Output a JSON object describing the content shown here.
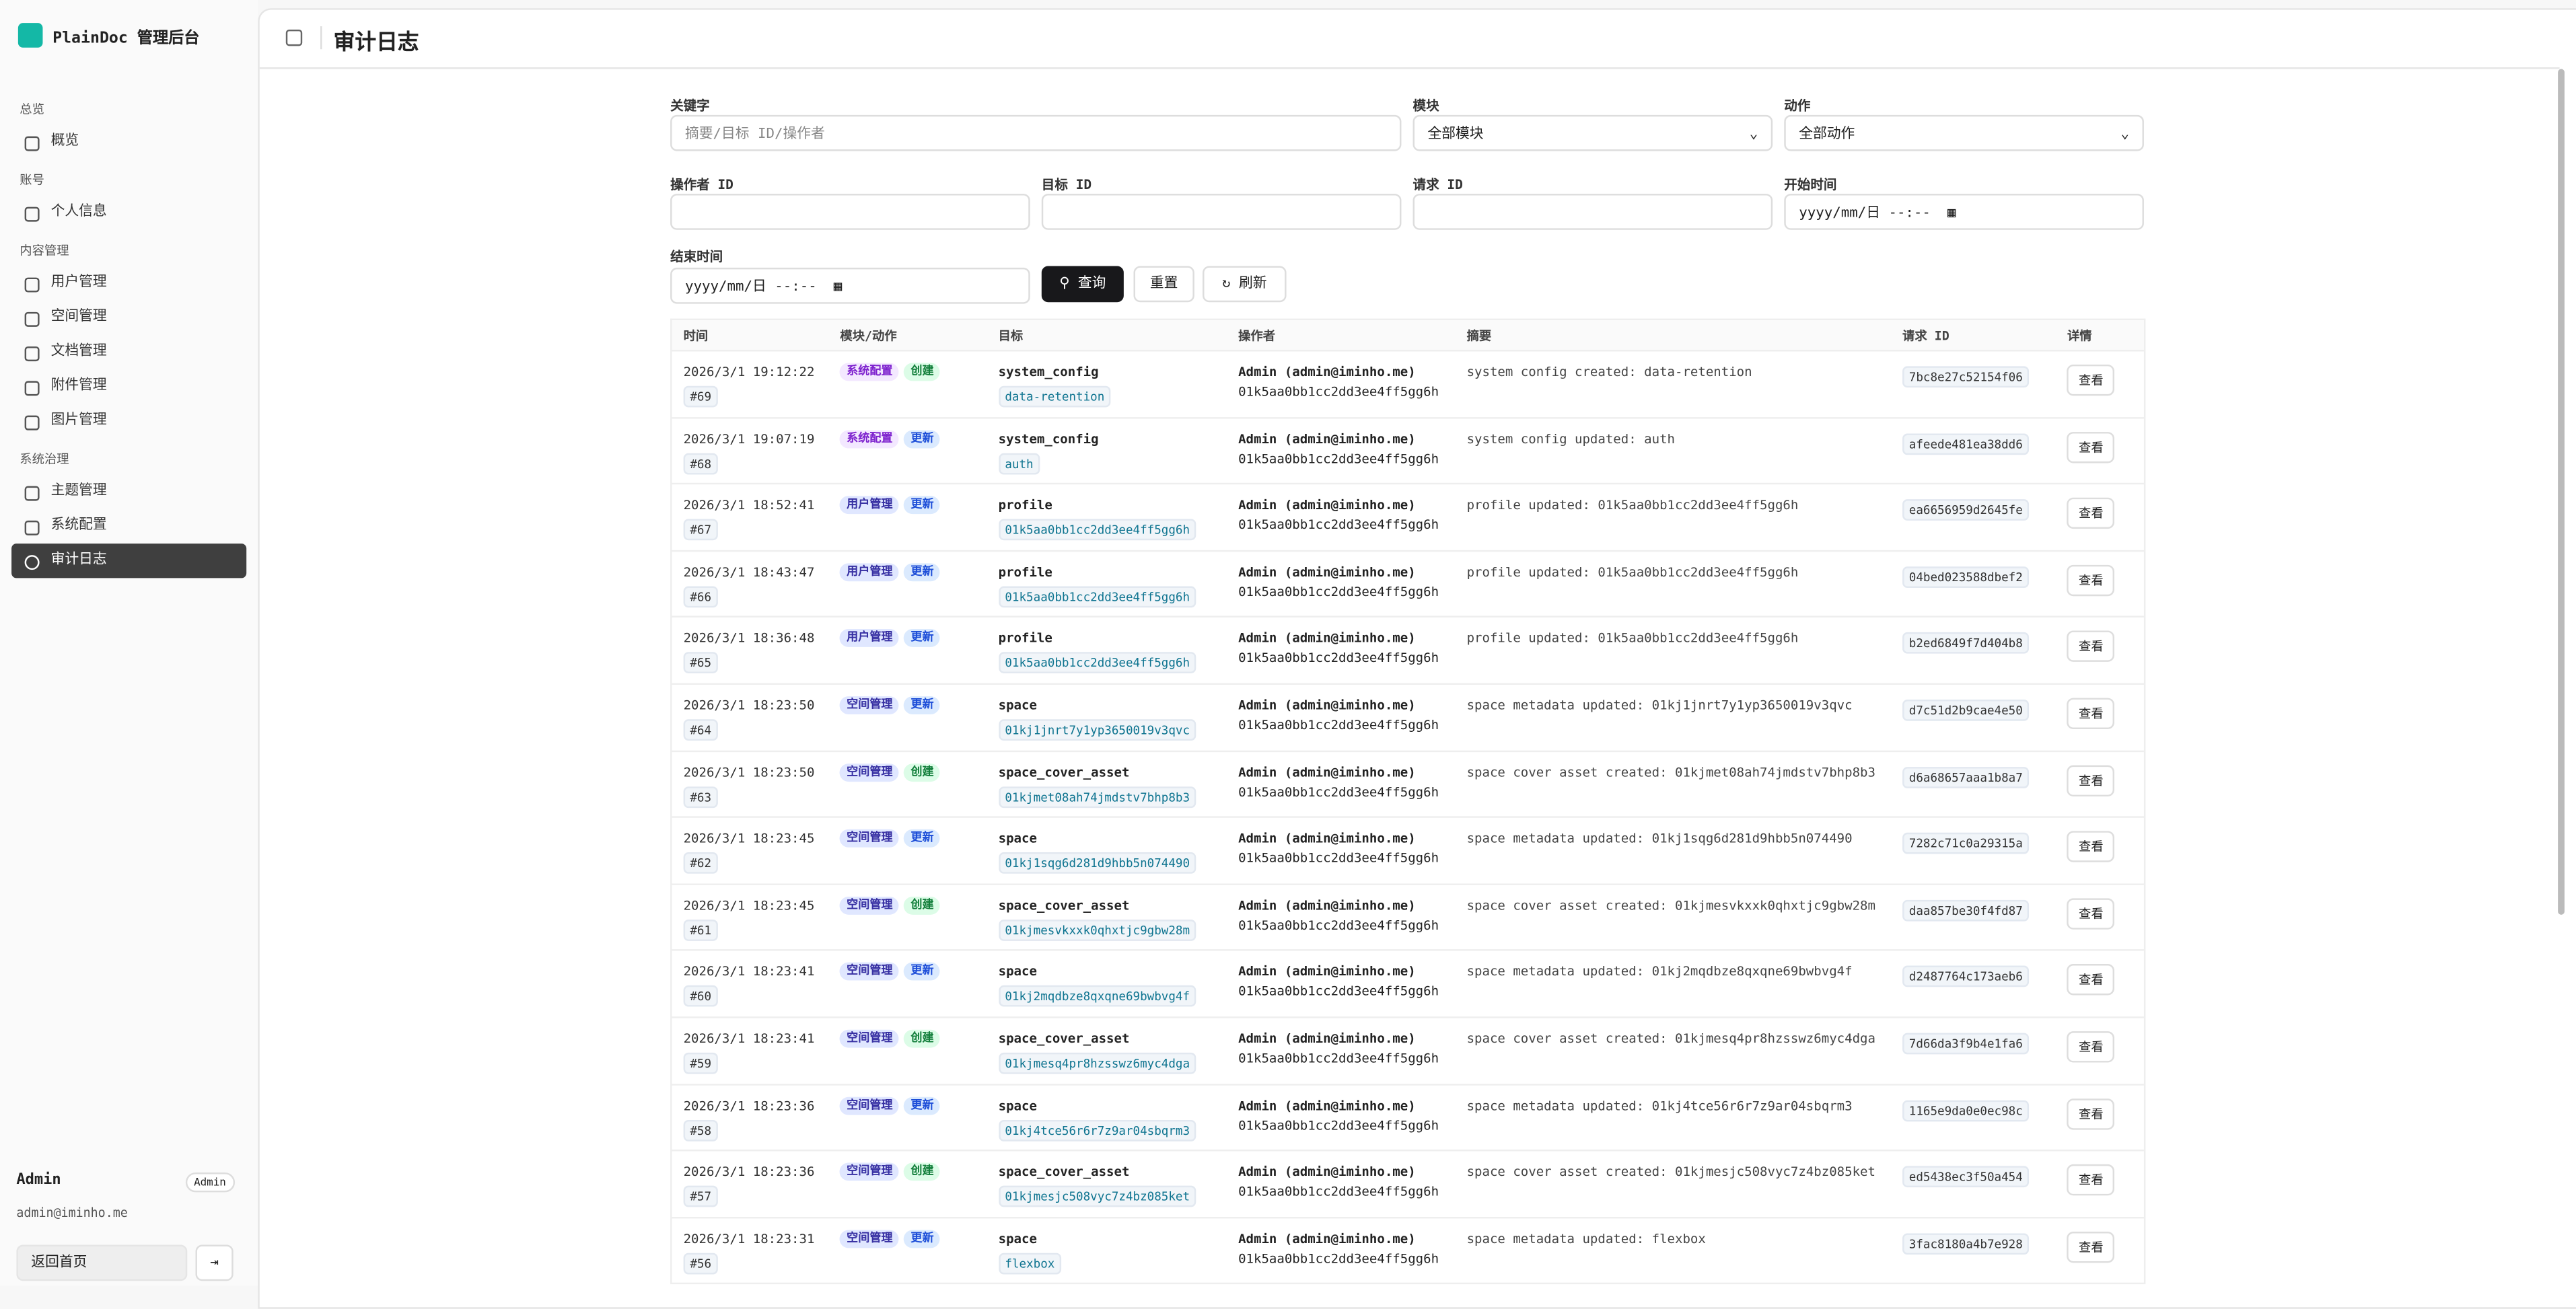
{
  "sidebar": {
    "brand": "PlainDoc 管理后台",
    "groups": [
      {
        "title": "总览",
        "items": [
          {
            "label": "概览"
          }
        ]
      },
      {
        "title": "账号",
        "items": [
          {
            "label": "个人信息"
          }
        ]
      },
      {
        "title": "内容管理",
        "items": [
          {
            "label": "用户管理"
          },
          {
            "label": "空间管理"
          },
          {
            "label": "文档管理"
          },
          {
            "label": "附件管理"
          },
          {
            "label": "图片管理"
          }
        ]
      },
      {
        "title": "系统治理",
        "items": [
          {
            "label": "主题管理"
          },
          {
            "label": "系统配置"
          },
          {
            "label": "审计日志",
            "active": true
          }
        ]
      }
    ],
    "user": {
      "name": "Admin",
      "role": "Admin",
      "email": "admin@iminho.me"
    },
    "back_home": "返回首页"
  },
  "header": {
    "title": "审计日志"
  },
  "filters": {
    "keyword": {
      "label": "关键字",
      "placeholder": "摘要/目标 ID/操作者"
    },
    "module": {
      "label": "模块",
      "value": "全部模块"
    },
    "action": {
      "label": "动作",
      "value": "全部动作"
    },
    "operator_id": {
      "label": "操作者 ID"
    },
    "target_id": {
      "label": "目标 ID"
    },
    "request_id": {
      "label": "请求 ID"
    },
    "start_time": {
      "label": "开始时间",
      "placeholder": "yyyy/mm/日 --:--"
    },
    "end_time": {
      "label": "结束时间",
      "placeholder": "yyyy/mm/日 --:--"
    }
  },
  "buttons": {
    "query": "查询",
    "reset": "重置",
    "refresh": "刷新"
  },
  "table": {
    "columns": [
      "时间",
      "模块/动作",
      "目标",
      "操作者",
      "摘要",
      "请求 ID",
      "详情"
    ],
    "rows": [
      {
        "time": "2026/3/1 19:12:22",
        "id": "#69",
        "module": "系统配置",
        "module_tone": "purple",
        "action": "创建",
        "action_tone": "green",
        "target_type": "system_config",
        "target_id": "data-retention",
        "operator": "Admin (admin@iminho.me)",
        "operator_id": "01k5aa0bb1cc2dd3ee4ff5gg6h",
        "summary": "system config created: data-retention",
        "request_id": "7bc8e27c52154f06",
        "detail": "查看"
      },
      {
        "time": "2026/3/1 19:07:19",
        "id": "#68",
        "module": "系统配置",
        "module_tone": "purple",
        "action": "更新",
        "action_tone": "blue",
        "target_type": "system_config",
        "target_id": "auth",
        "operator": "Admin (admin@iminho.me)",
        "operator_id": "01k5aa0bb1cc2dd3ee4ff5gg6h",
        "summary": "system config updated: auth",
        "request_id": "afeede481ea38dd6",
        "detail": "查看"
      },
      {
        "time": "2026/3/1 18:52:41",
        "id": "#67",
        "module": "用户管理",
        "module_tone": "indigo",
        "action": "更新",
        "action_tone": "blue",
        "target_type": "profile",
        "target_id": "01k5aa0bb1cc2dd3ee4ff5gg6h",
        "operator": "Admin (admin@iminho.me)",
        "operator_id": "01k5aa0bb1cc2dd3ee4ff5gg6h",
        "summary": "profile updated: 01k5aa0bb1cc2dd3ee4ff5gg6h",
        "request_id": "ea6656959d2645fe",
        "detail": "查看"
      },
      {
        "time": "2026/3/1 18:43:47",
        "id": "#66",
        "module": "用户管理",
        "module_tone": "indigo",
        "action": "更新",
        "action_tone": "blue",
        "target_type": "profile",
        "target_id": "01k5aa0bb1cc2dd3ee4ff5gg6h",
        "operator": "Admin (admin@iminho.me)",
        "operator_id": "01k5aa0bb1cc2dd3ee4ff5gg6h",
        "summary": "profile updated: 01k5aa0bb1cc2dd3ee4ff5gg6h",
        "request_id": "04bed023588dbef2",
        "detail": "查看"
      },
      {
        "time": "2026/3/1 18:36:48",
        "id": "#65",
        "module": "用户管理",
        "module_tone": "indigo",
        "action": "更新",
        "action_tone": "blue",
        "target_type": "profile",
        "target_id": "01k5aa0bb1cc2dd3ee4ff5gg6h",
        "operator": "Admin (admin@iminho.me)",
        "operator_id": "01k5aa0bb1cc2dd3ee4ff5gg6h",
        "summary": "profile updated: 01k5aa0bb1cc2dd3ee4ff5gg6h",
        "request_id": "b2ed6849f7d404b8",
        "detail": "查看"
      },
      {
        "time": "2026/3/1 18:23:50",
        "id": "#64",
        "module": "空间管理",
        "module_tone": "indigo",
        "action": "更新",
        "action_tone": "blue",
        "target_type": "space",
        "target_id": "01kj1jnrt7y1yp3650019v3qvc",
        "operator": "Admin (admin@iminho.me)",
        "operator_id": "01k5aa0bb1cc2dd3ee4ff5gg6h",
        "summary": "space metadata updated: 01kj1jnrt7y1yp3650019v3qvc",
        "request_id": "d7c51d2b9cae4e50",
        "detail": "查看"
      },
      {
        "time": "2026/3/1 18:23:50",
        "id": "#63",
        "module": "空间管理",
        "module_tone": "indigo",
        "action": "创建",
        "action_tone": "green",
        "target_type": "space_cover_asset",
        "target_id": "01kjmet08ah74jmdstv7bhp8b3",
        "operator": "Admin (admin@iminho.me)",
        "operator_id": "01k5aa0bb1cc2dd3ee4ff5gg6h",
        "summary": "space cover asset created: 01kjmet08ah74jmdstv7bhp8b3",
        "request_id": "d6a68657aaa1b8a7",
        "detail": "查看"
      },
      {
        "time": "2026/3/1 18:23:45",
        "id": "#62",
        "module": "空间管理",
        "module_tone": "indigo",
        "action": "更新",
        "action_tone": "blue",
        "target_type": "space",
        "target_id": "01kj1sqg6d281d9hbb5n074490",
        "operator": "Admin (admin@iminho.me)",
        "operator_id": "01k5aa0bb1cc2dd3ee4ff5gg6h",
        "summary": "space metadata updated: 01kj1sqg6d281d9hbb5n074490",
        "request_id": "7282c71c0a29315a",
        "detail": "查看"
      },
      {
        "time": "2026/3/1 18:23:45",
        "id": "#61",
        "module": "空间管理",
        "module_tone": "indigo",
        "action": "创建",
        "action_tone": "green",
        "target_type": "space_cover_asset",
        "target_id": "01kjmesvkxxk0qhxtjc9gbw28m",
        "operator": "Admin (admin@iminho.me)",
        "operator_id": "01k5aa0bb1cc2dd3ee4ff5gg6h",
        "summary": "space cover asset created: 01kjmesvkxxk0qhxtjc9gbw28m",
        "request_id": "daa857be30f4fd87",
        "detail": "查看"
      },
      {
        "time": "2026/3/1 18:23:41",
        "id": "#60",
        "module": "空间管理",
        "module_tone": "indigo",
        "action": "更新",
        "action_tone": "blue",
        "target_type": "space",
        "target_id": "01kj2mqdbze8qxqne69bwbvg4f",
        "operator": "Admin (admin@iminho.me)",
        "operator_id": "01k5aa0bb1cc2dd3ee4ff5gg6h",
        "summary": "space metadata updated: 01kj2mqdbze8qxqne69bwbvg4f",
        "request_id": "d2487764c173aeb6",
        "detail": "查看"
      },
      {
        "time": "2026/3/1 18:23:41",
        "id": "#59",
        "module": "空间管理",
        "module_tone": "indigo",
        "action": "创建",
        "action_tone": "green",
        "target_type": "space_cover_asset",
        "target_id": "01kjmesq4pr8hzsswz6myc4dga",
        "operator": "Admin (admin@iminho.me)",
        "operator_id": "01k5aa0bb1cc2dd3ee4ff5gg6h",
        "summary": "space cover asset created: 01kjmesq4pr8hzsswz6myc4dga",
        "request_id": "7d66da3f9b4e1fa6",
        "detail": "查看"
      },
      {
        "time": "2026/3/1 18:23:36",
        "id": "#58",
        "module": "空间管理",
        "module_tone": "indigo",
        "action": "更新",
        "action_tone": "blue",
        "target_type": "space",
        "target_id": "01kj4tce56r6r7z9ar04sbqrm3",
        "operator": "Admin (admin@iminho.me)",
        "operator_id": "01k5aa0bb1cc2dd3ee4ff5gg6h",
        "summary": "space metadata updated: 01kj4tce56r6r7z9ar04sbqrm3",
        "request_id": "1165e9da0e0ec98c",
        "detail": "查看"
      },
      {
        "time": "2026/3/1 18:23:36",
        "id": "#57",
        "module": "空间管理",
        "module_tone": "indigo",
        "action": "创建",
        "action_tone": "green",
        "target_type": "space_cover_asset",
        "target_id": "01kjmesjc508vyc7z4bz085ket",
        "operator": "Admin (admin@iminho.me)",
        "operator_id": "01k5aa0bb1cc2dd3ee4ff5gg6h",
        "summary": "space cover asset created: 01kjmesjc508vyc7z4bz085ket",
        "request_id": "ed5438ec3f50a454",
        "detail": "查看"
      },
      {
        "time": "2026/3/1 18:23:31",
        "id": "#56",
        "module": "空间管理",
        "module_tone": "indigo",
        "action": "更新",
        "action_tone": "blue",
        "target_type": "space",
        "target_id": "flexbox",
        "operator": "Admin (admin@iminho.me)",
        "operator_id": "01k5aa0bb1cc2dd3ee4ff5gg6h",
        "summary": "space metadata updated: flexbox",
        "request_id": "3fac8180a4b7e928",
        "detail": "查看"
      }
    ]
  }
}
